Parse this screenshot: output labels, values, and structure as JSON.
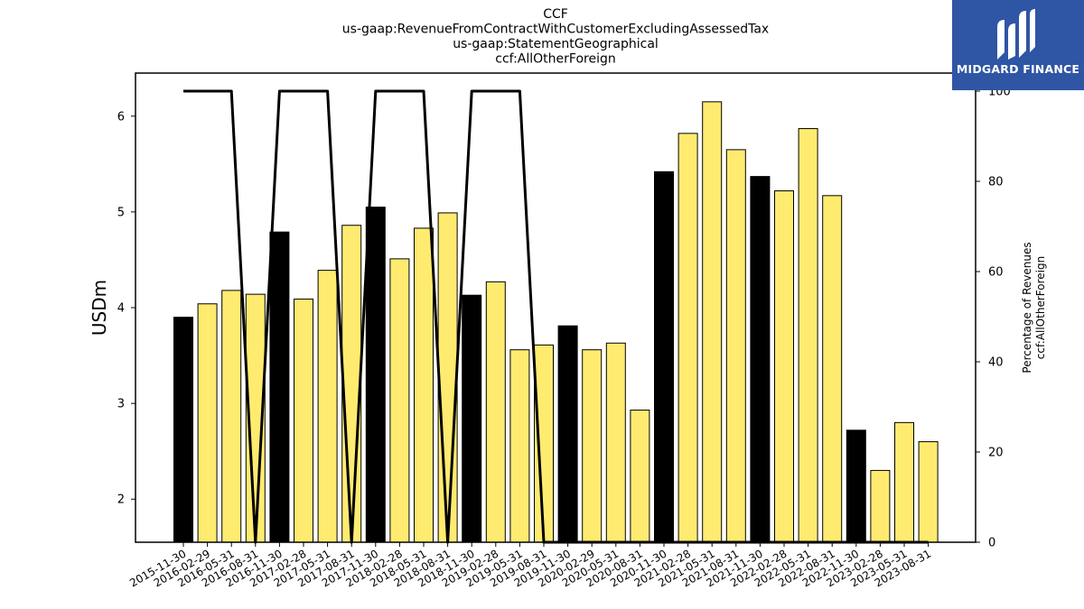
{
  "chart_data": {
    "type": "bar",
    "title_lines": [
      "CCF",
      "us-gaap:RevenueFromContractWithCustomerExcludingAssessedTax",
      "us-gaap:StatementGeographical",
      "ccf:AllOtherForeign"
    ],
    "ylabel": "USDm",
    "ylabel_right": [
      "Percentage of Revenues",
      "ccf:AllOtherForeign"
    ],
    "ylim": [
      1.55,
      6.45
    ],
    "yticks": [
      2,
      3,
      4,
      5,
      6
    ],
    "ylim_right": [
      0,
      104
    ],
    "yticks_right": [
      0,
      20,
      40,
      60,
      80,
      100
    ],
    "categories": [
      "2015-11-30",
      "2016-02-29",
      "2016-05-31",
      "2016-08-31",
      "2016-11-30",
      "2017-02-28",
      "2017-05-31",
      "2017-08-31",
      "2017-11-30",
      "2018-02-28",
      "2018-05-31",
      "2018-08-31",
      "2018-11-30",
      "2019-02-28",
      "2019-05-31",
      "2019-08-31",
      "2019-11-30",
      "2020-02-29",
      "2020-05-31",
      "2020-08-31",
      "2020-11-30",
      "2021-02-28",
      "2021-05-31",
      "2021-08-31",
      "2021-11-30",
      "2022-02-28",
      "2022-05-31",
      "2022-08-31",
      "2022-11-30",
      "2023-02-28",
      "2023-05-31",
      "2023-08-31"
    ],
    "values": [
      3.9,
      4.04,
      4.18,
      4.14,
      4.79,
      4.09,
      4.39,
      4.86,
      5.05,
      4.51,
      4.83,
      4.99,
      4.13,
      4.27,
      3.56,
      3.61,
      3.81,
      3.56,
      3.63,
      2.93,
      5.42,
      5.82,
      6.15,
      5.65,
      5.37,
      5.22,
      5.87,
      5.17,
      2.72,
      2.3,
      2.8,
      2.6
    ],
    "bar_highlight": [
      true,
      false,
      false,
      false,
      true,
      false,
      false,
      false,
      true,
      false,
      false,
      false,
      true,
      false,
      false,
      false,
      true,
      false,
      false,
      false,
      true,
      false,
      false,
      false,
      true,
      false,
      false,
      false,
      true,
      false,
      false,
      false
    ],
    "line_values": [
      100,
      100,
      100,
      0,
      100,
      100,
      100,
      0,
      100,
      100,
      100,
      0,
      100,
      100,
      100,
      0,
      0,
      0,
      0,
      0,
      0,
      0,
      0,
      0,
      0,
      0,
      0,
      0,
      0,
      0,
      0,
      0
    ],
    "line_color": "#000000",
    "colors": {
      "bar_default": "#ffeb70",
      "bar_highlight": "#000000",
      "bar_edge": "#000000"
    },
    "grid": false
  },
  "logo": {
    "text": "MIDGARD FINANCE",
    "background": "#2f55a5"
  }
}
